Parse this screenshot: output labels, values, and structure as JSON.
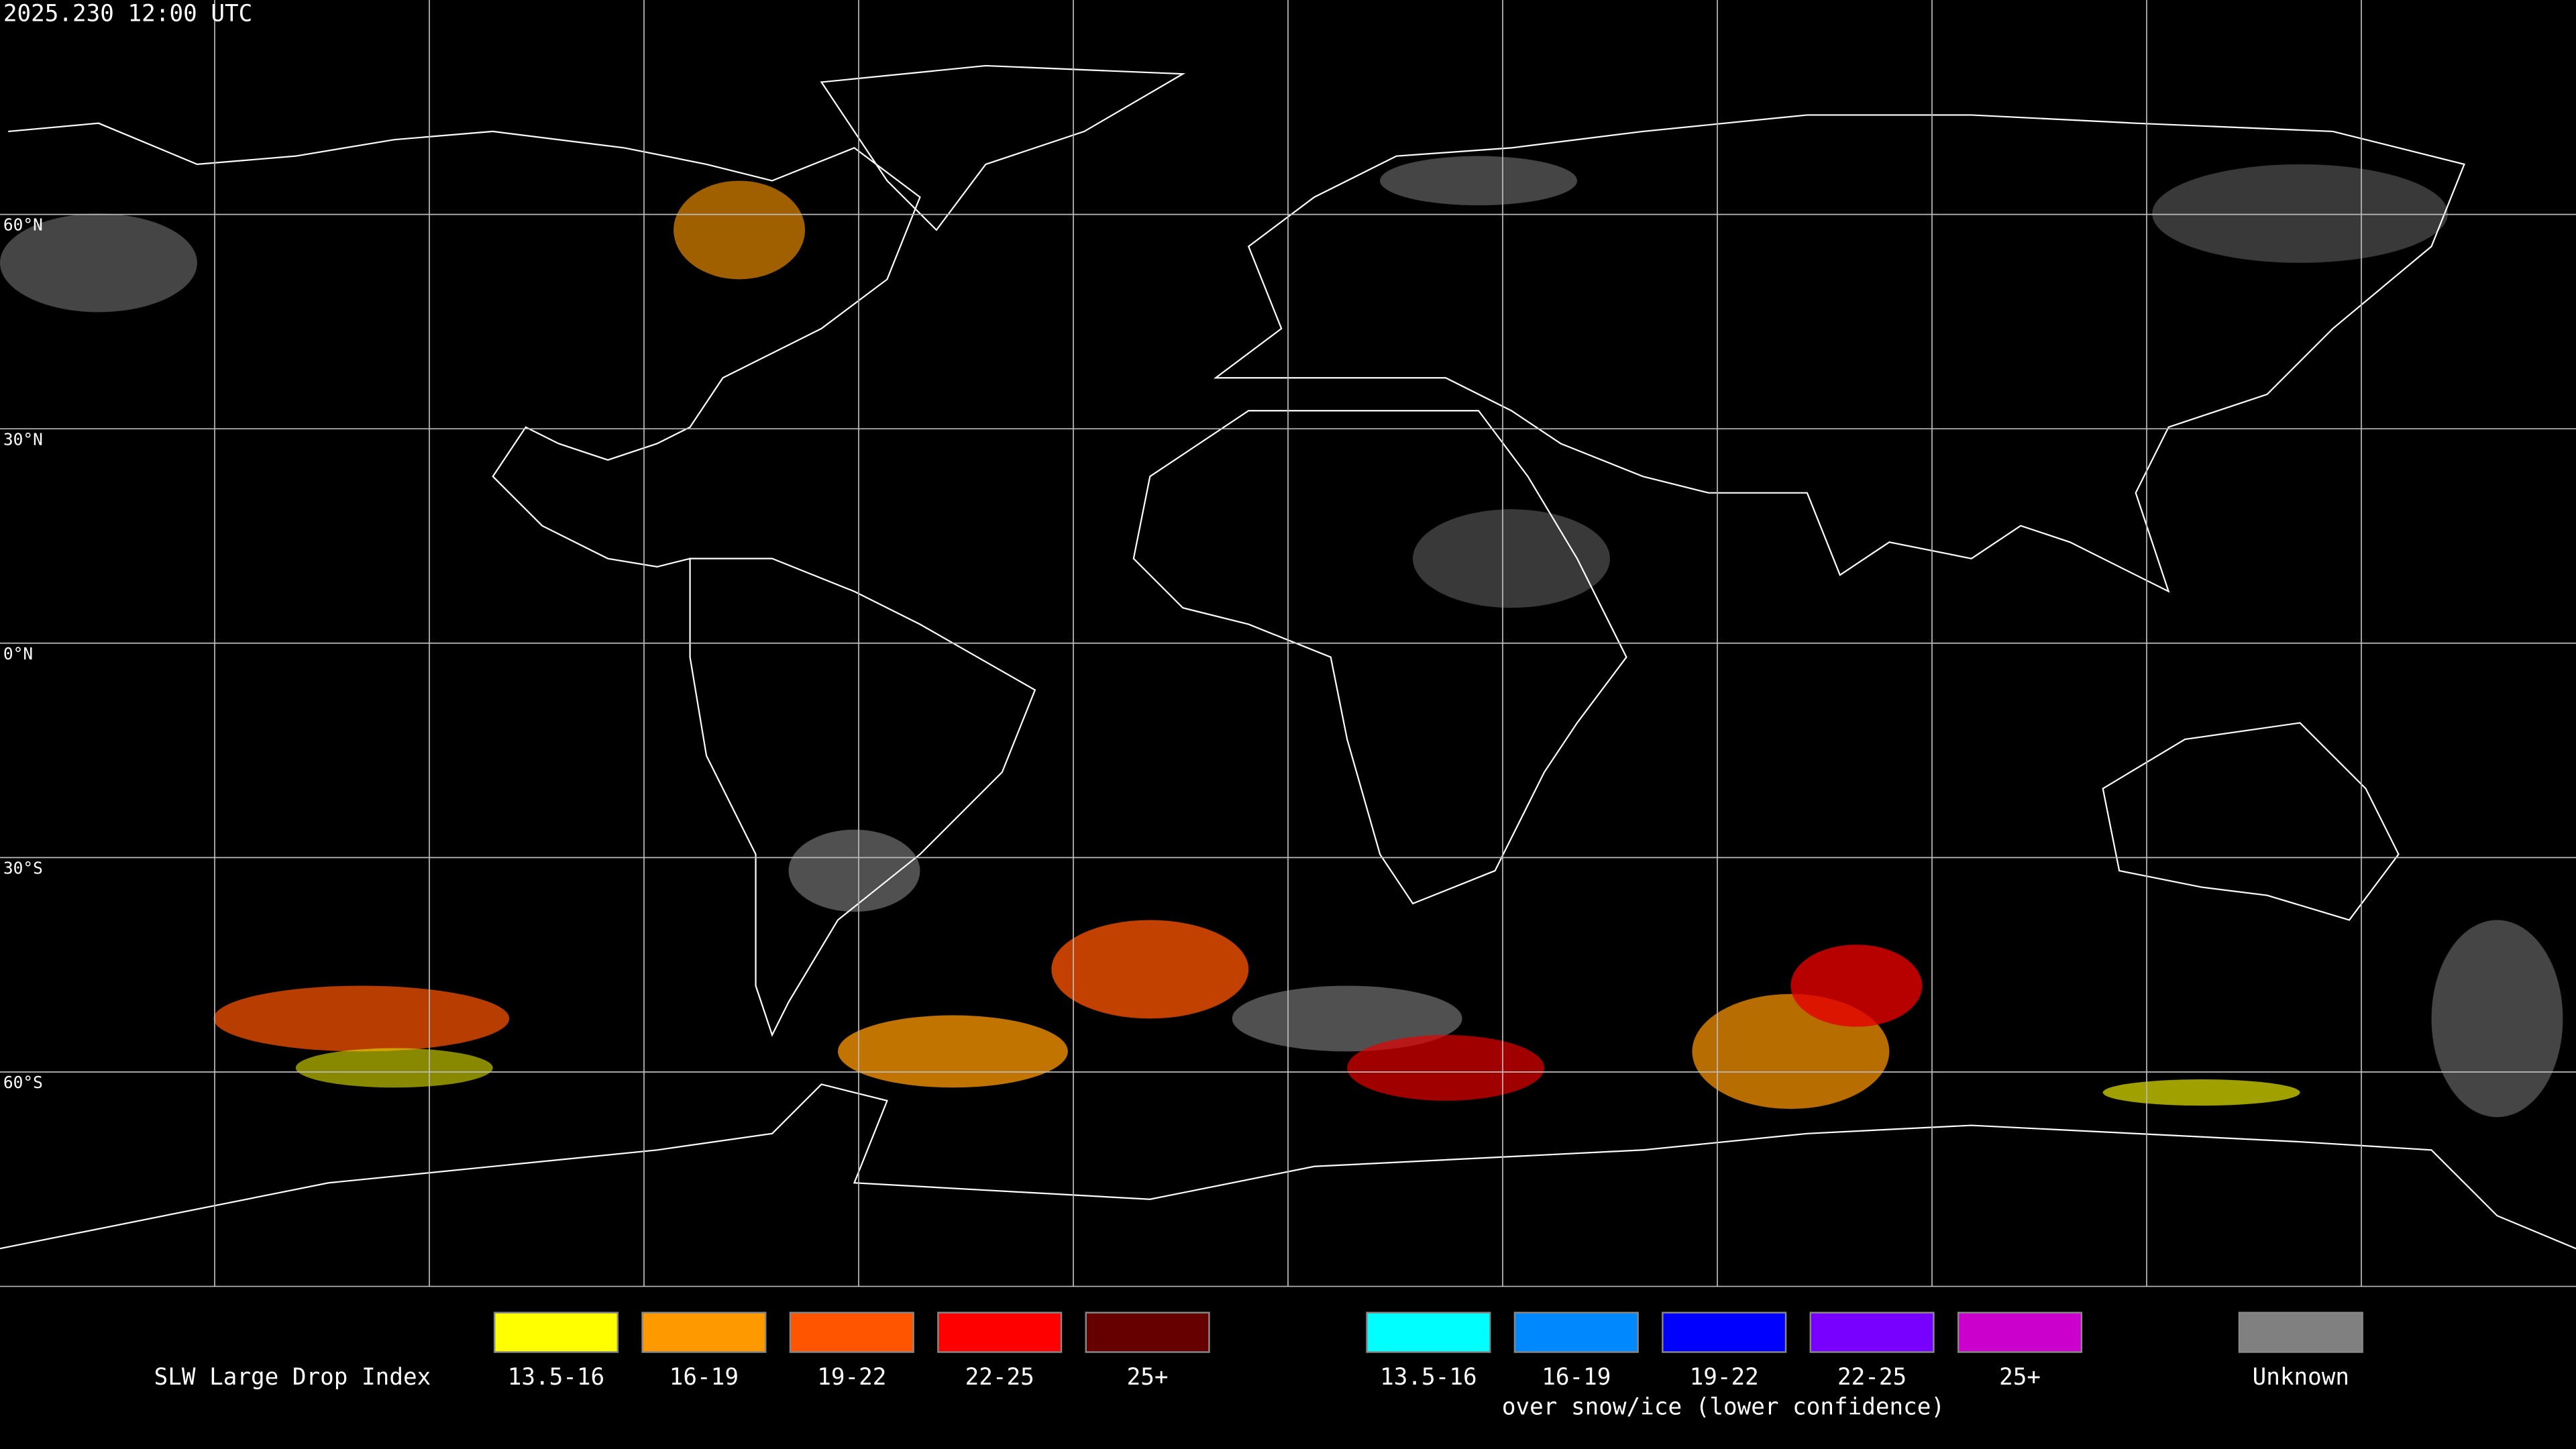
{
  "timestamp": "2025.230 12:00 UTC",
  "map": {
    "latitude_labels": [
      "60°N",
      "30°N",
      "0°N",
      "30°S",
      "60°S"
    ]
  },
  "legend": {
    "title": "SLW Large Drop Index",
    "groups": [
      {
        "items": [
          {
            "label": "13.5-16",
            "color": "#ffff00"
          },
          {
            "label": "16-19",
            "color": "#ff9900"
          },
          {
            "label": "19-22",
            "color": "#ff5500"
          },
          {
            "label": "22-25",
            "color": "#ff0000"
          },
          {
            "label": "25+",
            "color": "#660000"
          }
        ]
      },
      {
        "caption": "over snow/ice (lower confidence)",
        "items": [
          {
            "label": "13.5-16",
            "color": "#00ffff"
          },
          {
            "label": "16-19",
            "color": "#0088ff"
          },
          {
            "label": "19-22",
            "color": "#0000ff"
          },
          {
            "label": "22-25",
            "color": "#7700ff"
          },
          {
            "label": "25+",
            "color": "#cc00cc"
          }
        ]
      },
      {
        "items": [
          {
            "label": "Unknown",
            "color": "#808080"
          }
        ]
      }
    ]
  }
}
